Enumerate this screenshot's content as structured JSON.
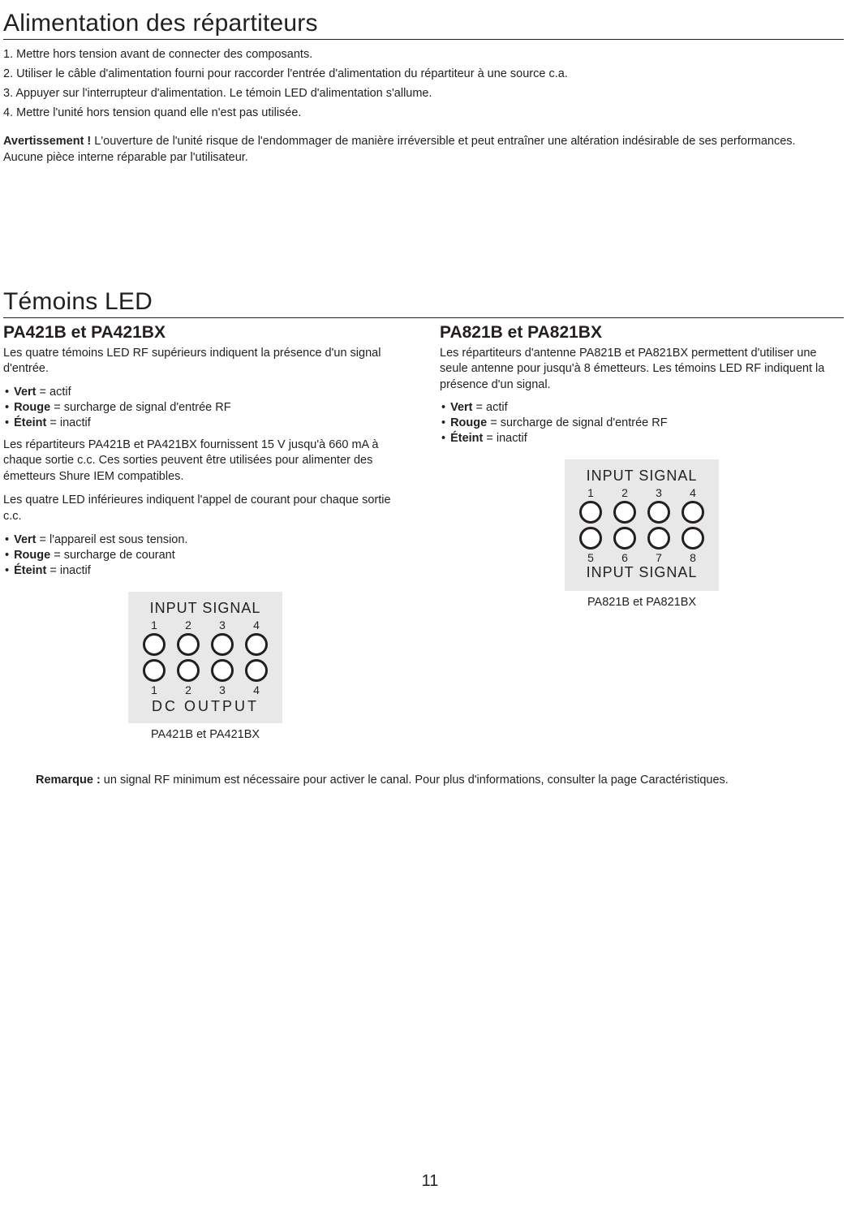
{
  "page_number": "11",
  "section1": {
    "title": "Alimentation des répartiteurs",
    "steps": [
      "1. Mettre hors tension avant de connecter des composants.",
      "2. Utiliser le câble d'alimentation fourni pour raccorder l'entrée d'alimentation du répartiteur à une source c.a.",
      "3. Appuyer sur l'interrupteur d'alimentation. Le témoin LED d'alimentation s'allume.",
      "4. Mettre l'unité hors tension quand elle n'est pas utilisée."
    ],
    "warning_label": "Avertissement !",
    "warning_text": " L'ouverture de l'unité risque de l'endommager de manière irréversible et peut entraîner une altération indésirable de ses performances. Aucune pièce interne réparable par l'utilisateur."
  },
  "section2": {
    "title": "Témoins LED",
    "left": {
      "heading": "PA421B et PA421BX",
      "desc1": "Les quatre témoins LED RF supérieurs indiquent la présence d'un signal d'entrée.",
      "b1_bold": "Vert",
      "b1_rest": " = actif",
      "b2_bold": "Rouge",
      "b2_rest": " = surcharge de signal d'entrée RF",
      "b3_bold": "Éteint",
      "b3_rest": " = inactif",
      "desc2": "Les répartiteurs PA421B et PA421BX fournissent 15 V jusqu'à 660 mA à chaque sortie c.c. Ces sorties peuvent être utilisées pour alimenter des émetteurs Shure IEM compatibles.",
      "desc3": "Les quatre LED inférieures indiquent l'appel de courant pour chaque sortie c.c.",
      "b4_bold": "Vert",
      "b4_rest": " = l'appareil est sous tension.",
      "b5_bold": "Rouge",
      "b5_rest": " = surcharge de courant",
      "b6_bold": "Éteint",
      "b6_rest": " = inactif",
      "panel": {
        "top_label": "INPUT SIGNAL",
        "top_nums": [
          "1",
          "2",
          "3",
          "4"
        ],
        "bottom_nums": [
          "1",
          "2",
          "3",
          "4"
        ],
        "bottom_label": "DC OUTPUT",
        "caption": "PA421B et PA421BX",
        "bg_color": "#e8e8e8",
        "led_border_color": "#231f20"
      }
    },
    "right": {
      "heading": "PA821B et PA821BX",
      "desc1": "Les répartiteurs d'antenne PA821B et PA821BX permettent d'utiliser une seule antenne pour jusqu'à 8 émetteurs. Les témoins LED RF indiquent la présence d'un signal.",
      "b1_bold": "Vert",
      "b1_rest": " = actif",
      "b2_bold": "Rouge",
      "b2_rest": " = surcharge de signal d'entrée RF",
      "b3_bold": "Éteint",
      "b3_rest": " = inactif",
      "panel": {
        "top_label": "INPUT SIGNAL",
        "top_nums": [
          "1",
          "2",
          "3",
          "4"
        ],
        "bottom_nums": [
          "5",
          "6",
          "7",
          "8"
        ],
        "bottom_label": "INPUT SIGNAL",
        "caption": "PA821B et PA821BX",
        "bg_color": "#e8e8e8",
        "led_border_color": "#231f20"
      }
    },
    "note_bold": "Remarque :",
    "note_text": " un signal RF minimum est nécessaire pour activer le canal. Pour plus d'informations, consulter la page Caractéristiques."
  }
}
